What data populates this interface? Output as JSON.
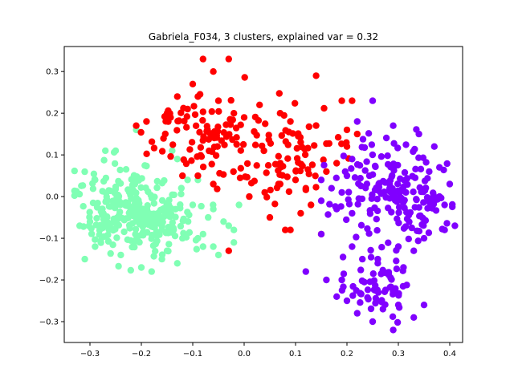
{
  "chart_data": {
    "type": "scatter",
    "title": "Gabriela_F034, 3 clusters, explained var = 0.32",
    "xlabel": "",
    "ylabel": "",
    "xlim": [
      -0.35,
      0.425
    ],
    "ylim": [
      -0.35,
      0.36
    ],
    "xticks": [
      -0.3,
      -0.2,
      -0.1,
      0.0,
      0.1,
      0.2,
      0.3,
      0.4
    ],
    "yticks": [
      -0.3,
      -0.2,
      -0.1,
      0.0,
      0.1,
      0.2,
      0.3
    ],
    "xtick_labels": [
      "−0.3",
      "−0.2",
      "−0.1",
      "0.0",
      "0.1",
      "0.2",
      "0.3",
      "0.4"
    ],
    "ytick_labels": [
      "−0.3",
      "−0.2",
      "−0.1",
      "0.0",
      "0.1",
      "0.2",
      "0.3"
    ],
    "grid": false,
    "legend": "none",
    "series": [
      {
        "color": "#80ffb4",
        "clusters": [
          {
            "center": [
              -0.23,
              -0.03
            ],
            "spread": [
              0.045,
              0.05
            ],
            "count": 200
          },
          {
            "center": [
              -0.17,
              -0.06
            ],
            "spread": [
              0.04,
              0.045
            ],
            "count": 100
          }
        ],
        "points": [
          [
            -0.31,
            -0.15
          ],
          [
            -0.29,
            0.04
          ],
          [
            -0.27,
            0.11
          ],
          [
            -0.21,
            0.16
          ],
          [
            -0.2,
            -0.17
          ],
          [
            -0.18,
            -0.18
          ],
          [
            -0.15,
            -0.13
          ],
          [
            -0.12,
            -0.1
          ],
          [
            -0.1,
            -0.02
          ],
          [
            -0.08,
            -0.09
          ],
          [
            -0.07,
            -0.05
          ],
          [
            -0.06,
            -0.03
          ],
          [
            -0.05,
            -0.14
          ],
          [
            -0.04,
            -0.06
          ],
          [
            -0.03,
            -0.07
          ],
          [
            -0.02,
            -0.11
          ],
          [
            -0.02,
            -0.08
          ],
          [
            -0.01,
            -0.02
          ],
          [
            -0.09,
            0.04
          ],
          [
            -0.11,
            0.04
          ],
          [
            -0.13,
            0.09
          ],
          [
            -0.14,
            0.11
          ],
          [
            -0.25,
            0.11
          ],
          [
            -0.32,
            -0.07
          ],
          [
            -0.3,
            -0.06
          ],
          [
            -0.29,
            -0.12
          ],
          [
            -0.24,
            -0.14
          ],
          [
            -0.16,
            -0.15
          ],
          [
            -0.13,
            -0.16
          ],
          [
            -0.08,
            -0.12
          ],
          [
            -0.06,
            -0.12
          ],
          [
            -0.09,
            -0.1
          ]
        ]
      },
      {
        "color": "#ff0000",
        "clusters": [
          {
            "center": [
              -0.08,
              0.15
            ],
            "spread": [
              0.055,
              0.05
            ],
            "count": 90
          },
          {
            "center": [
              0.09,
              0.1
            ],
            "spread": [
              0.05,
              0.05
            ],
            "count": 75
          }
        ],
        "points": [
          [
            -0.08,
            0.33
          ],
          [
            -0.03,
            0.33
          ],
          [
            -0.06,
            0.3
          ],
          [
            -0.1,
            0.27
          ],
          [
            -0.09,
            0.24
          ],
          [
            0.14,
            0.29
          ],
          [
            0.19,
            0.23
          ],
          [
            0.21,
            0.23
          ],
          [
            0.2,
            0.16
          ],
          [
            -0.21,
            0.17
          ],
          [
            -0.19,
            0.18
          ],
          [
            -0.12,
            0.05
          ],
          [
            -0.09,
            0.05
          ],
          [
            -0.06,
            0.03
          ],
          [
            -0.03,
            -0.13
          ],
          [
            0.01,
            0.0
          ],
          [
            0.04,
            0.01
          ],
          [
            0.05,
            -0.05
          ],
          [
            0.08,
            -0.08
          ],
          [
            0.09,
            -0.08
          ],
          [
            0.11,
            -0.04
          ],
          [
            0.13,
            -0.02
          ],
          [
            0.15,
            -0.09
          ],
          [
            0.07,
            0.03
          ],
          [
            0.1,
            0.04
          ],
          [
            0.12,
            0.02
          ],
          [
            0.16,
            0.06
          ],
          [
            0.18,
            0.08
          ],
          [
            0.2,
            0.12
          ],
          [
            0.22,
            0.15
          ],
          [
            0.11,
            0.13
          ],
          [
            0.09,
            0.18
          ],
          [
            0.07,
            0.2
          ],
          [
            0.03,
            0.22
          ],
          [
            0.0,
            0.19
          ],
          [
            -0.02,
            0.2
          ],
          [
            -0.05,
            0.23
          ],
          [
            -0.15,
            0.2
          ],
          [
            -0.13,
            0.24
          ],
          [
            -0.11,
            0.21
          ]
        ]
      },
      {
        "color": "#8000ff",
        "clusters": [
          {
            "center": [
              0.27,
              0.02
            ],
            "spread": [
              0.05,
              0.06
            ],
            "count": 135
          },
          {
            "center": [
              0.34,
              -0.03
            ],
            "spread": [
              0.03,
              0.04
            ],
            "count": 45
          },
          {
            "center": [
              0.27,
              -0.22
            ],
            "spread": [
              0.03,
              0.035
            ],
            "count": 60
          }
        ],
        "points": [
          [
            0.25,
            0.23
          ],
          [
            0.22,
            0.18
          ],
          [
            0.29,
            0.17
          ],
          [
            0.34,
            0.15
          ],
          [
            0.37,
            0.12
          ],
          [
            0.38,
            0.07
          ],
          [
            0.4,
            0.03
          ],
          [
            0.39,
            -0.02
          ],
          [
            0.41,
            -0.07
          ],
          [
            0.39,
            -0.08
          ],
          [
            0.35,
            -0.1
          ],
          [
            0.33,
            -0.13
          ],
          [
            0.31,
            -0.17
          ],
          [
            0.3,
            -0.12
          ],
          [
            0.26,
            -0.15
          ],
          [
            0.23,
            -0.15
          ],
          [
            0.21,
            -0.12
          ],
          [
            0.19,
            -0.2
          ],
          [
            0.16,
            -0.2
          ],
          [
            0.15,
            -0.09
          ],
          [
            0.12,
            -0.18
          ],
          [
            0.18,
            -0.24
          ],
          [
            0.2,
            -0.25
          ],
          [
            0.22,
            -0.28
          ],
          [
            0.25,
            -0.3
          ],
          [
            0.29,
            -0.32
          ],
          [
            0.33,
            -0.29
          ],
          [
            0.35,
            -0.26
          ],
          [
            0.3,
            -0.26
          ],
          [
            0.27,
            -0.27
          ],
          [
            0.19,
            0.01
          ],
          [
            0.2,
            0.05
          ],
          [
            0.21,
            0.09
          ],
          [
            0.18,
            -0.03
          ],
          [
            0.21,
            -0.04
          ],
          [
            0.15,
            0.04
          ],
          [
            0.15,
            -0.01
          ],
          [
            0.17,
            0.02
          ],
          [
            0.36,
            0.06
          ],
          [
            0.38,
            0.0
          ]
        ]
      }
    ]
  }
}
